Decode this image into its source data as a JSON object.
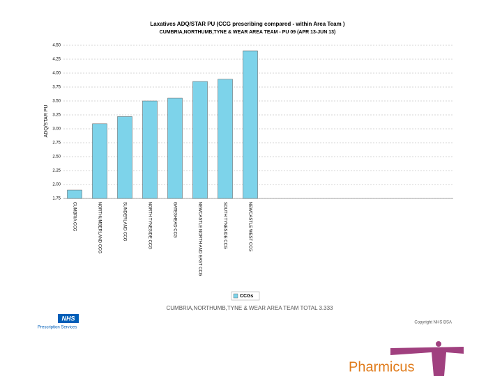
{
  "chart_data": {
    "type": "bar",
    "title": "Laxatives ADQ/STAR PU  (CCG prescribing compared - within Area Team )",
    "subtitle": "CUMBRIA,NORTHUMB,TYNE & WEAR AREA TEAM - PU 09 (APR 13-JUN 13)",
    "y_label": "ADQ/STAR PU",
    "categories": [
      "CUMBRIA CCG",
      "NORTHUMBERLAND CCG",
      "SUNDERLAND CCG",
      "NORTH TYNESIDE CCG",
      "GATESHEAD CCG",
      "NEWCASTLE NORTH AND EAST CCG",
      "SOUTH TYNESIDE CCG",
      "NEWCASTLE WEST CCG"
    ],
    "series": [
      {
        "name": "CCGs",
        "color": "#7dd3ea",
        "values": [
          1.9,
          3.09,
          3.22,
          3.5,
          3.55,
          3.85,
          3.89,
          4.4
        ]
      }
    ],
    "ylim": [
      1.75,
      4.5
    ],
    "yticks": [
      1.75,
      {
        "value": 2,
        "label": "2.00"
      },
      2.25,
      {
        "value": 2.5,
        "label": "2.50"
      },
      2.75,
      {
        "value": 3,
        "label": "3.00"
      },
      3.25,
      {
        "value": 3.5,
        "label": "3.50"
      },
      3.75,
      {
        "value": 4,
        "label": "4.00"
      },
      4.25,
      {
        "value": 4.5,
        "label": "4.50"
      }
    ],
    "grid": true,
    "footer": "CUMBRIA,NORTHUMB,TYNE & WEAR AREA TEAM TOTAL 3.333"
  },
  "copyright": "Copyright NHS BSA",
  "logo": {
    "nhs": "NHS",
    "service": "Prescription Services"
  },
  "brand": "Pharmicus"
}
